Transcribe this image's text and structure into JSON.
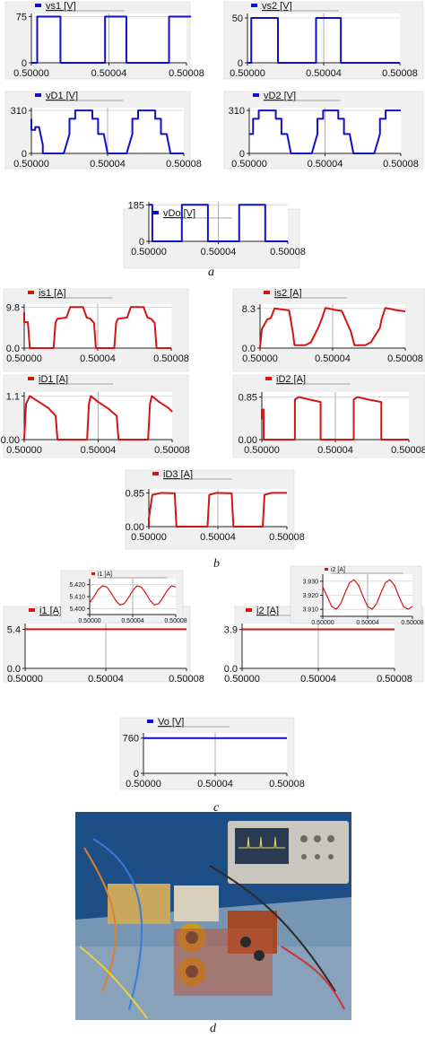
{
  "captions": [
    "a",
    "b",
    "c",
    "d"
  ],
  "colors": {
    "voltage": "#1010c8",
    "current": "#d41414",
    "panel_bg": "#f0f0f0",
    "plot_bg": "#ffffff",
    "grid": "#9a9a9a"
  },
  "chart_data": [
    {
      "id": "vs1",
      "type": "line",
      "group": "a",
      "legend": "vs1 [V]",
      "color": "voltage",
      "xlim": [
        0.5,
        0.50008
      ],
      "ylim": [
        0,
        80
      ],
      "yticks": [
        "75",
        "0"
      ],
      "ytick_vals": [
        75,
        0
      ],
      "xticks": [
        "0.50000",
        "0.50004",
        "0.50008"
      ],
      "x": [
        0.5,
        0.500003,
        0.500003,
        0.500015,
        0.500015,
        0.500038,
        0.500038,
        0.500049,
        0.500049,
        0.500071,
        0.500071,
        0.500082,
        0.500082,
        0.50008
      ],
      "y": [
        0,
        0,
        75,
        75,
        0,
        0,
        75,
        75,
        0,
        0,
        75,
        75,
        75,
        75
      ]
    },
    {
      "id": "vs2",
      "type": "line",
      "group": "a",
      "legend": "vs2 [V]",
      "color": "voltage",
      "xlim": [
        0.5,
        0.50008
      ],
      "ylim": [
        0,
        55
      ],
      "yticks": [
        "50",
        "0"
      ],
      "ytick_vals": [
        50,
        0
      ],
      "xticks": [
        "0.50000",
        "0.50004",
        "0.50008"
      ],
      "x": [
        0.5,
        0.500002,
        0.500002,
        0.500016,
        0.500016,
        0.500036,
        0.500036,
        0.500049,
        0.500049,
        0.50008
      ],
      "y": [
        0,
        0,
        50,
        50,
        0,
        0,
        50,
        50,
        0,
        0
      ]
    },
    {
      "id": "vD1",
      "type": "line",
      "group": "a",
      "legend": "vD1 [V]",
      "color": "voltage",
      "xlim": [
        0.5,
        0.50008
      ],
      "ylim": [
        0,
        330
      ],
      "yticks": [
        "310",
        "0"
      ],
      "ytick_vals": [
        310,
        0
      ],
      "xticks": [
        "0.50000",
        "0.50004",
        "0.50008"
      ],
      "x": [
        0.5,
        0.5,
        0.500002,
        0.500002,
        0.500004,
        0.500006,
        0.500006,
        0.500017,
        0.50002,
        0.50002,
        0.500023,
        0.500023,
        0.500032,
        0.500032,
        0.500035,
        0.500035,
        0.500038,
        0.50004,
        0.50004,
        0.50005,
        0.500053,
        0.500053,
        0.500056,
        0.500056,
        0.500065,
        0.500065,
        0.500068,
        0.500068,
        0.500071,
        0.500073,
        0.500073,
        0.50008
      ],
      "y": [
        250,
        170,
        170,
        190,
        190,
        60,
        0,
        0,
        140,
        250,
        250,
        310,
        310,
        250,
        250,
        140,
        140,
        0,
        0,
        0,
        140,
        250,
        250,
        310,
        310,
        250,
        250,
        140,
        140,
        0,
        0,
        0
      ]
    },
    {
      "id": "vD2",
      "type": "line",
      "group": "a",
      "legend": "vD2 [V]",
      "color": "voltage",
      "xlim": [
        0.5,
        0.50008
      ],
      "ylim": [
        0,
        330
      ],
      "yticks": [
        "310",
        "0"
      ],
      "ytick_vals": [
        310,
        0
      ],
      "xticks": [
        "0.50000",
        "0.50004",
        "0.50008"
      ],
      "x": [
        0.5,
        0.500002,
        0.500002,
        0.500005,
        0.500005,
        0.500014,
        0.500014,
        0.500017,
        0.500017,
        0.50002,
        0.500022,
        0.500022,
        0.500033,
        0.500036,
        0.500036,
        0.500039,
        0.500039,
        0.500047,
        0.500047,
        0.50005,
        0.50005,
        0.500053,
        0.500055,
        0.500055,
        0.500066,
        0.500069,
        0.500069,
        0.500072,
        0.500072,
        0.50008
      ],
      "y": [
        140,
        140,
        250,
        250,
        310,
        310,
        250,
        250,
        140,
        140,
        0,
        0,
        0,
        140,
        250,
        250,
        310,
        310,
        250,
        250,
        140,
        140,
        0,
        0,
        0,
        140,
        250,
        250,
        310,
        310
      ]
    },
    {
      "id": "vDo",
      "type": "line",
      "group": "a",
      "legend": "vDo [V]",
      "color": "voltage",
      "xlim": [
        0.5,
        0.50008
      ],
      "ylim": [
        0,
        200
      ],
      "yticks": [
        "185",
        "0"
      ],
      "ytick_vals": [
        185,
        0
      ],
      "xticks": [
        "0.50000",
        "0.50004",
        "0.50008"
      ],
      "x": [
        0.5,
        0.500002,
        0.500002,
        0.500019,
        0.500019,
        0.500034,
        0.500034,
        0.500052,
        0.500052,
        0.500067,
        0.500067,
        0.50008
      ],
      "y": [
        185,
        185,
        0,
        0,
        185,
        185,
        0,
        0,
        185,
        185,
        0,
        0
      ]
    },
    {
      "id": "is1",
      "type": "line",
      "group": "b",
      "legend": "is1 [A]",
      "color": "current",
      "xlim": [
        0.5,
        0.50008
      ],
      "ylim": [
        0,
        10.5
      ],
      "yticks": [
        "9.8",
        "0.0"
      ],
      "ytick_vals": [
        9.8,
        0
      ],
      "xticks": [
        "0.50000",
        "0.50004",
        "0.50008"
      ],
      "x": [
        0.5,
        0.5,
        0.500002,
        0.500003,
        0.500003,
        0.500016,
        0.500017,
        0.500018,
        0.500023,
        0.500025,
        0.500032,
        0.500034,
        0.500036,
        0.500038,
        0.500039,
        0.500049,
        0.50005,
        0.500051,
        0.500056,
        0.500058,
        0.500065,
        0.500067,
        0.500069,
        0.500071,
        0.500072,
        0.50008
      ],
      "y": [
        8.5,
        6.2,
        6.2,
        0.3,
        0,
        0,
        6.0,
        7.0,
        7.3,
        9.8,
        9.8,
        7.3,
        7.0,
        6.0,
        0,
        0,
        6.0,
        7.0,
        7.3,
        9.8,
        9.8,
        7.3,
        7.0,
        6.0,
        0,
        0
      ]
    },
    {
      "id": "is2",
      "type": "line",
      "group": "b",
      "legend": "is2 [A]",
      "color": "current",
      "xlim": [
        0.5,
        0.50008
      ],
      "ylim": [
        0,
        9.2
      ],
      "yticks": [
        "8.3",
        "0.0"
      ],
      "ytick_vals": [
        8.3,
        0
      ],
      "xticks": [
        "0.50000",
        "0.50004",
        "0.50008"
      ],
      "x": [
        0.5,
        0.500001,
        0.500004,
        0.500006,
        0.500008,
        0.500012,
        0.500016,
        0.500018,
        0.500019,
        0.500021,
        0.500025,
        0.500028,
        0.500032,
        0.500034,
        0.500036,
        0.500039,
        0.500041,
        0.500045,
        0.50005,
        0.500052,
        0.500053,
        0.500055,
        0.500058,
        0.500061,
        0.500066,
        0.500067,
        0.500069,
        0.500072,
        0.500074,
        0.500078,
        0.50008
      ],
      "y": [
        0,
        4.0,
        6.0,
        6.3,
        8.3,
        8.1,
        7.9,
        3.5,
        0.6,
        0.6,
        0.6,
        1.2,
        4.2,
        6.1,
        8.4,
        8.2,
        8.0,
        7.8,
        3.5,
        0.6,
        0.6,
        0.6,
        0.6,
        1.2,
        4.2,
        6.1,
        8.4,
        8.2,
        8.0,
        7.8,
        7.7
      ]
    },
    {
      "id": "iD1",
      "type": "line",
      "group": "b",
      "legend": "iD1 [A]",
      "color": "current",
      "xlim": [
        0.5,
        0.50008
      ],
      "ylim": [
        0,
        1.2
      ],
      "yticks": [
        "1.1",
        "0.00"
      ],
      "ytick_vals": [
        1.1,
        0
      ],
      "xticks": [
        "0.50000",
        "0.50004",
        "0.50008"
      ],
      "x": [
        0.5,
        0.500001,
        0.500003,
        0.500008,
        0.500013,
        0.500017,
        0.500018,
        0.500034,
        0.500035,
        0.500036,
        0.50004,
        0.500045,
        0.50005,
        0.500051,
        0.500067,
        0.500068,
        0.500069,
        0.500073,
        0.500078,
        0.50008
      ],
      "y": [
        0,
        0.9,
        1.1,
        0.95,
        0.8,
        0.6,
        0,
        0,
        0.9,
        1.1,
        0.95,
        0.8,
        0.6,
        0,
        0,
        0.9,
        1.1,
        0.95,
        0.8,
        0.7
      ]
    },
    {
      "id": "iD2",
      "type": "line",
      "group": "b",
      "legend": "iD2 [A]",
      "color": "current",
      "xlim": [
        0.5,
        0.50008
      ],
      "ylim": [
        0,
        0.95
      ],
      "yticks": [
        "0.85",
        "0.00"
      ],
      "ytick_vals": [
        0.85,
        0
      ],
      "xticks": [
        "0.50000",
        "0.50004",
        "0.50008"
      ],
      "x": [
        0.5,
        0.5,
        0.500001,
        0.500001,
        0.500018,
        0.500018,
        0.50002,
        0.500026,
        0.500032,
        0.500032,
        0.50005,
        0.50005,
        0.500052,
        0.500058,
        0.500065,
        0.500065,
        0.50008
      ],
      "y": [
        0.4,
        0.6,
        0.6,
        0,
        0,
        0.8,
        0.85,
        0.8,
        0.75,
        0,
        0,
        0.8,
        0.85,
        0.8,
        0.75,
        0,
        0
      ]
    },
    {
      "id": "iD3",
      "type": "line",
      "group": "b",
      "legend": "iD3 [A]",
      "color": "current",
      "xlim": [
        0.5,
        0.50008
      ],
      "ylim": [
        0,
        0.95
      ],
      "yticks": [
        "0.85",
        "0.00"
      ],
      "ytick_vals": [
        0.85,
        0
      ],
      "xticks": [
        "0.50000",
        "0.50004",
        "0.50008"
      ],
      "x": [
        0.5,
        0.5,
        0.500002,
        0.500007,
        0.500015,
        0.500016,
        0.500034,
        0.500035,
        0.500039,
        0.500048,
        0.500049,
        0.500066,
        0.500067,
        0.500071,
        0.50008
      ],
      "y": [
        0,
        0.2,
        0.8,
        0.85,
        0.84,
        0,
        0,
        0.8,
        0.85,
        0.84,
        0,
        0,
        0.8,
        0.85,
        0.85
      ]
    },
    {
      "id": "i1",
      "type": "line",
      "group": "c",
      "legend": "i1 [A]",
      "color": "current",
      "xlim": [
        0.5,
        0.50008
      ],
      "ylim": [
        0,
        6.2
      ],
      "yticks": [
        "5.4",
        "0.0"
      ],
      "ytick_vals": [
        5.4,
        0
      ],
      "xticks": [
        "0.50000",
        "0.50004",
        "0.50008"
      ],
      "x": [
        0.5,
        0.50008
      ],
      "y": [
        5.41,
        5.41
      ]
    },
    {
      "id": "i2",
      "type": "line",
      "group": "c",
      "legend": "i2 [A]",
      "color": "current",
      "xlim": [
        0.5,
        0.50008
      ],
      "ylim": [
        0,
        4.5
      ],
      "yticks": [
        "3.9",
        "0.0"
      ],
      "ytick_vals": [
        3.9,
        0
      ],
      "xticks": [
        "0.50000",
        "0.50004",
        "0.50008"
      ],
      "x": [
        0.5,
        0.50008
      ],
      "y": [
        3.92,
        3.92
      ]
    },
    {
      "id": "i1_inset",
      "type": "line",
      "group": "c",
      "legend": "i1 [A]",
      "color": "current",
      "xlim": [
        0.5,
        0.50008
      ],
      "ylim": [
        5.395,
        5.425
      ],
      "yticks": [
        "5.420",
        "5.410",
        "5.400"
      ],
      "ytick_vals": [
        5.42,
        5.41,
        5.4
      ],
      "xticks": [
        "0.50000",
        "0.50004",
        "0.50008"
      ],
      "x": [
        0.5,
        0.500004,
        0.500008,
        0.500012,
        0.500016,
        0.50002,
        0.500024,
        0.500028,
        0.500032,
        0.500036,
        0.50004,
        0.500044,
        0.500048,
        0.500052,
        0.500056,
        0.50006,
        0.500064,
        0.500068,
        0.500072,
        0.500076,
        0.50008
      ],
      "y": [
        5.405,
        5.41,
        5.416,
        5.419,
        5.418,
        5.413,
        5.407,
        5.403,
        5.404,
        5.409,
        5.415,
        5.419,
        5.418,
        5.413,
        5.407,
        5.403,
        5.404,
        5.409,
        5.415,
        5.419,
        5.418
      ]
    },
    {
      "id": "i2_inset",
      "type": "line",
      "group": "c",
      "legend": "i2 [A]",
      "color": "current",
      "xlim": [
        0.5,
        0.50008
      ],
      "ylim": [
        3.905,
        3.935
      ],
      "yticks": [
        "3.930",
        "3.920",
        "3.910"
      ],
      "ytick_vals": [
        3.93,
        3.92,
        3.91
      ],
      "xticks": [
        "0.50000",
        "0.50004",
        "0.50008"
      ],
      "x": [
        0.5,
        0.500004,
        0.500008,
        0.500012,
        0.500016,
        0.50002,
        0.500024,
        0.500028,
        0.500032,
        0.500036,
        0.50004,
        0.500044,
        0.500048,
        0.500052,
        0.500056,
        0.50006,
        0.500064,
        0.500068,
        0.500072,
        0.500076,
        0.50008
      ],
      "y": [
        3.926,
        3.919,
        3.912,
        3.91,
        3.914,
        3.922,
        3.929,
        3.931,
        3.927,
        3.919,
        3.912,
        3.91,
        3.914,
        3.922,
        3.929,
        3.931,
        3.927,
        3.919,
        3.912,
        3.91,
        3.912
      ]
    },
    {
      "id": "Vo",
      "type": "line",
      "group": "c",
      "legend": "Vo [V]",
      "color": "voltage",
      "xlim": [
        0.5,
        0.50008
      ],
      "ylim": [
        0,
        870
      ],
      "yticks": [
        "760",
        "0"
      ],
      "ytick_vals": [
        760,
        0
      ],
      "xticks": [
        "0.50000",
        "0.50004",
        "0.50008"
      ],
      "x": [
        0.5,
        0.50008
      ],
      "y": [
        760,
        760
      ]
    }
  ]
}
